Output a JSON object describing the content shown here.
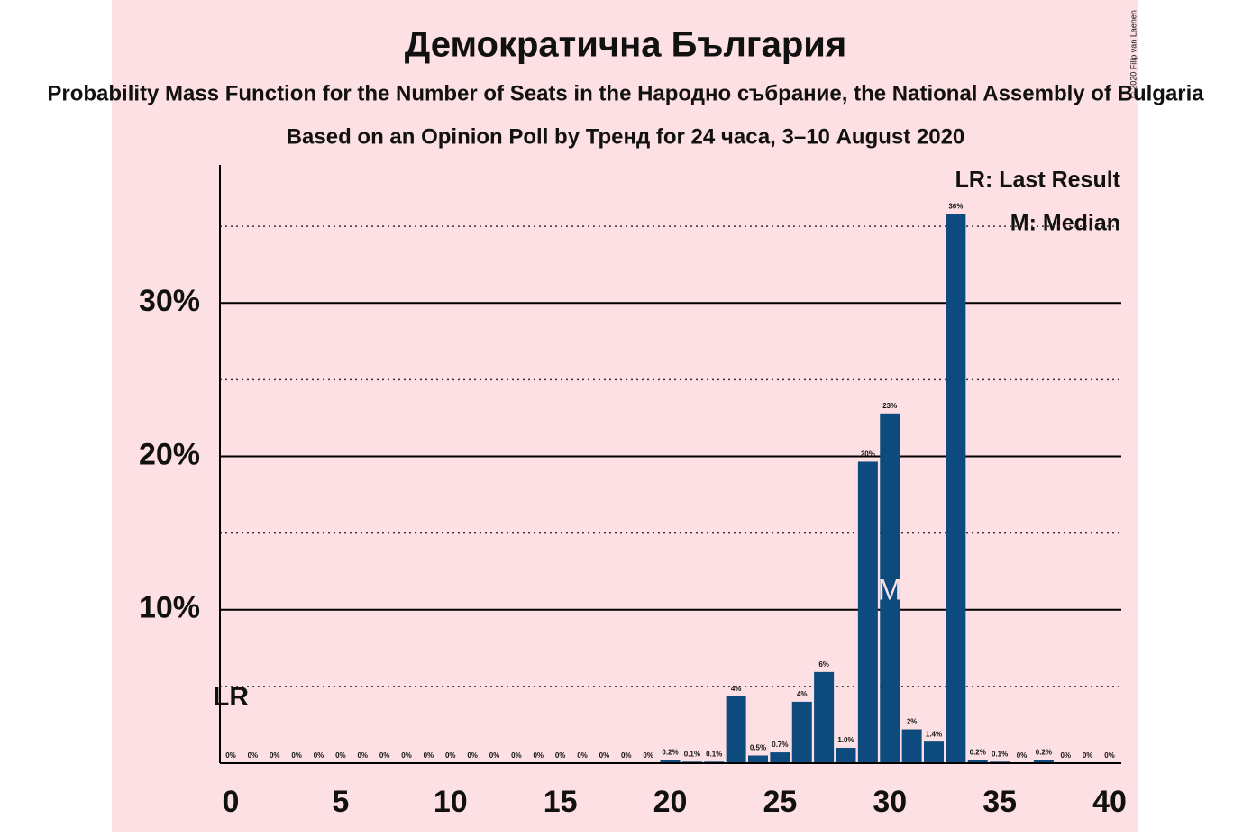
{
  "chart_data": {
    "type": "bar",
    "title": "Демократична България",
    "subtitle": "Probability Mass Function for the Number of Seats in the Народно събрание, the National Assembly of Bulgaria",
    "subtitle2": "Based on an Opinion Poll by Тренд for 24 часа, 3–10 August 2020",
    "copyright": "© 2020 Filip van Laenen",
    "x": [
      0,
      1,
      2,
      3,
      4,
      5,
      6,
      7,
      8,
      9,
      10,
      11,
      12,
      13,
      14,
      15,
      16,
      17,
      18,
      19,
      20,
      21,
      22,
      23,
      24,
      25,
      26,
      27,
      28,
      29,
      30,
      31,
      32,
      33,
      34,
      35,
      36,
      37,
      38,
      39,
      40
    ],
    "values": [
      0,
      0,
      0,
      0,
      0,
      0,
      0,
      0,
      0,
      0,
      0,
      0,
      0,
      0,
      0,
      0,
      0,
      0,
      0,
      0,
      0.2,
      0.1,
      0.1,
      4.35,
      0.5,
      0.7,
      4.0,
      5.94,
      1.0,
      19.65,
      22.8,
      2.2,
      1.4,
      35.8,
      0.2,
      0.1,
      0,
      0.2,
      0,
      0,
      0
    ],
    "value_labels": [
      "0%",
      "0%",
      "0%",
      "0%",
      "0%",
      "0%",
      "0%",
      "0%",
      "0%",
      "0%",
      "0%",
      "0%",
      "0%",
      "0%",
      "0%",
      "0%",
      "0%",
      "0%",
      "0%",
      "0%",
      "0.2%",
      "0.1%",
      "0.1%",
      "4%",
      "0.5%",
      "0.7%",
      "4%",
      "6%",
      "1.0%",
      "20%",
      "23%",
      "2%",
      "1.4%",
      "36%",
      "0.2%",
      "0.1%",
      "0%",
      "0.2%",
      "0%",
      "0%",
      "0%"
    ],
    "color": "#0d4a7e",
    "xlim": [
      0,
      40
    ],
    "xticks": [
      0,
      5,
      10,
      15,
      20,
      25,
      30,
      35,
      40
    ],
    "ylim": [
      0,
      39
    ],
    "yticks": [
      {
        "value": 10,
        "label": "10%"
      },
      {
        "value": 20,
        "label": "20%"
      },
      {
        "value": 30,
        "label": "30%"
      }
    ],
    "minor_gridlines": [
      5,
      15,
      25,
      35
    ],
    "last_result": {
      "x": 0,
      "label": "LR"
    },
    "median": {
      "x": 30,
      "label": "M"
    },
    "legend": [
      "LR: Last Result",
      "M: Median"
    ]
  }
}
